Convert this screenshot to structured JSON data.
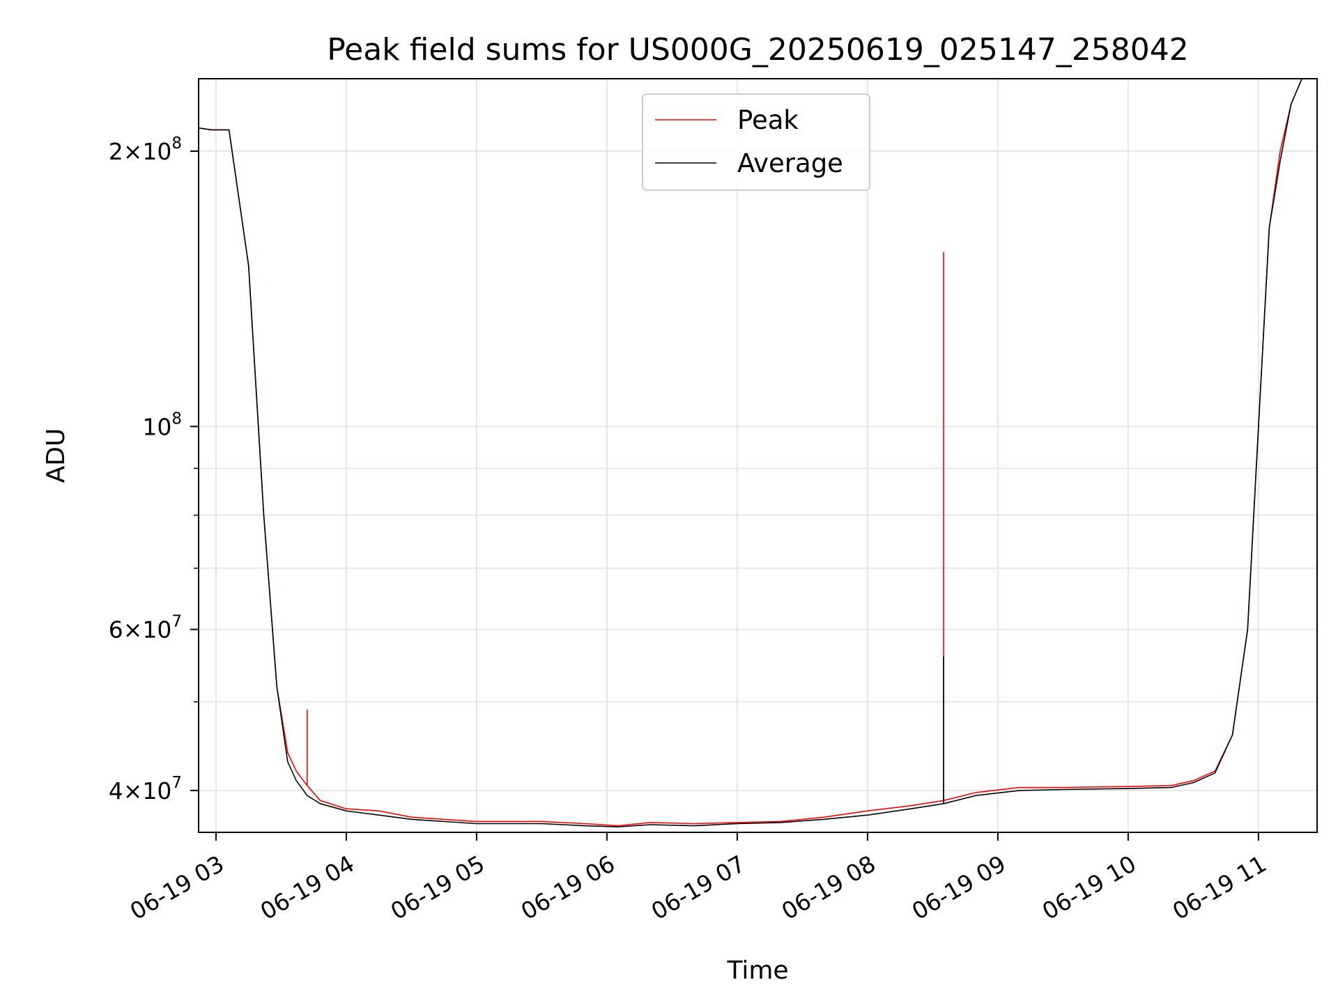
{
  "chart_data": {
    "type": "line",
    "title": "Peak field sums for US000G_20250619_025147_258042",
    "xlabel": "Time",
    "ylabel": "ADU",
    "y_scale": "log",
    "grid": true,
    "legend_placement": "upper-center",
    "xlim": [
      "2025-06-19T02:52",
      "2025-06-19T11:27"
    ],
    "ylim": [
      36000000,
      240000000
    ],
    "x_ticks": [
      {
        "value": "2025-06-19T03:00",
        "label": "06-19 03"
      },
      {
        "value": "2025-06-19T04:00",
        "label": "06-19 04"
      },
      {
        "value": "2025-06-19T05:00",
        "label": "06-19 05"
      },
      {
        "value": "2025-06-19T06:00",
        "label": "06-19 06"
      },
      {
        "value": "2025-06-19T07:00",
        "label": "06-19 07"
      },
      {
        "value": "2025-06-19T08:00",
        "label": "06-19 08"
      },
      {
        "value": "2025-06-19T09:00",
        "label": "06-19 09"
      },
      {
        "value": "2025-06-19T10:00",
        "label": "06-19 10"
      },
      {
        "value": "2025-06-19T11:00",
        "label": "06-19 11"
      }
    ],
    "y_major_ticks": [
      {
        "value": 40000000,
        "mantissa": "4",
        "exponent": "7"
      },
      {
        "value": 60000000,
        "mantissa": "6",
        "exponent": "7"
      },
      {
        "value": 100000000,
        "mantissa": "",
        "exponent": "8"
      },
      {
        "value": 200000000,
        "mantissa": "2",
        "exponent": "8"
      }
    ],
    "y_minor_ticks": [
      50000000,
      70000000,
      80000000,
      90000000
    ],
    "series": [
      {
        "name": "Peak",
        "color": "#ff0000",
        "x": [
          "2025-06-19T02:52",
          "2025-06-19T02:58",
          "2025-06-19T03:06",
          "2025-06-19T03:15",
          "2025-06-19T03:22",
          "2025-06-19T03:28",
          "2025-06-19T03:33",
          "2025-06-19T03:37",
          "2025-06-19T03:42",
          "2025-06-19T03:42",
          "2025-06-19T03:42",
          "2025-06-19T03:48",
          "2025-06-19T04:00",
          "2025-06-19T04:15",
          "2025-06-19T04:30",
          "2025-06-19T05:00",
          "2025-06-19T05:30",
          "2025-06-19T05:50",
          "2025-06-19T06:05",
          "2025-06-19T06:20",
          "2025-06-19T06:40",
          "2025-06-19T07:00",
          "2025-06-19T07:20",
          "2025-06-19T07:40",
          "2025-06-19T08:00",
          "2025-06-19T08:20",
          "2025-06-19T08:35",
          "2025-06-19T08:35",
          "2025-06-19T08:35",
          "2025-06-19T08:50",
          "2025-06-19T09:10",
          "2025-06-19T09:30",
          "2025-06-19T10:00",
          "2025-06-19T10:20",
          "2025-06-19T10:30",
          "2025-06-19T10:40",
          "2025-06-19T10:48",
          "2025-06-19T10:55",
          "2025-06-19T11:00",
          "2025-06-19T11:05",
          "2025-06-19T11:10",
          "2025-06-19T11:15",
          "2025-06-19T11:20"
        ],
        "y": [
          212000000,
          211000000,
          211000000,
          150000000,
          80000000,
          52000000,
          44000000,
          42000000,
          40500000,
          49000000,
          40500000,
          39000000,
          38200000,
          38000000,
          37400000,
          37000000,
          37000000,
          36800000,
          36600000,
          36900000,
          36800000,
          36900000,
          37000000,
          37400000,
          38000000,
          38500000,
          39000000,
          155000000,
          39000000,
          39800000,
          40300000,
          40300000,
          40400000,
          40500000,
          41000000,
          42000000,
          46000000,
          60000000,
          100000000,
          165000000,
          200000000,
          225000000,
          240000000
        ]
      },
      {
        "name": "Average",
        "color": "#000000",
        "x": [
          "2025-06-19T02:52",
          "2025-06-19T02:58",
          "2025-06-19T03:06",
          "2025-06-19T03:15",
          "2025-06-19T03:22",
          "2025-06-19T03:28",
          "2025-06-19T03:33",
          "2025-06-19T03:37",
          "2025-06-19T03:42",
          "2025-06-19T03:48",
          "2025-06-19T04:00",
          "2025-06-19T04:15",
          "2025-06-19T04:30",
          "2025-06-19T05:00",
          "2025-06-19T05:30",
          "2025-06-19T05:50",
          "2025-06-19T06:05",
          "2025-06-19T06:20",
          "2025-06-19T06:40",
          "2025-06-19T07:00",
          "2025-06-19T07:20",
          "2025-06-19T07:40",
          "2025-06-19T08:00",
          "2025-06-19T08:20",
          "2025-06-19T08:35",
          "2025-06-19T08:35",
          "2025-06-19T08:35",
          "2025-06-19T08:50",
          "2025-06-19T09:10",
          "2025-06-19T09:30",
          "2025-06-19T10:00",
          "2025-06-19T10:20",
          "2025-06-19T10:30",
          "2025-06-19T10:40",
          "2025-06-19T10:48",
          "2025-06-19T10:55",
          "2025-06-19T11:00",
          "2025-06-19T11:05",
          "2025-06-19T11:10",
          "2025-06-19T11:15",
          "2025-06-19T11:20"
        ],
        "y": [
          212000000,
          211000000,
          211000000,
          150000000,
          80000000,
          52000000,
          43000000,
          41000000,
          39500000,
          38700000,
          38000000,
          37600000,
          37200000,
          36800000,
          36800000,
          36600000,
          36500000,
          36700000,
          36600000,
          36800000,
          36900000,
          37200000,
          37600000,
          38200000,
          38700000,
          56000000,
          38700000,
          39500000,
          40000000,
          40100000,
          40200000,
          40300000,
          40800000,
          41800000,
          46000000,
          60000000,
          100000000,
          165000000,
          195000000,
          225000000,
          240000000
        ]
      }
    ]
  }
}
